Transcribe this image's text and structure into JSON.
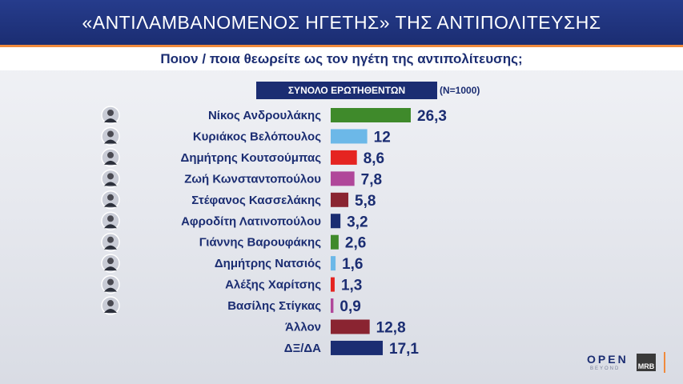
{
  "header": {
    "title": "«ΑΝΤΙΛΑΜΒΑΝΟΜΕΝΟΣ ΗΓΕΤΗΣ» ΤΗΣ ΑΝΤΙΠΟΛΙΤΕΥΣΗΣ",
    "subtitle": "Ποιον / ποια θεωρείτε ως τον ηγέτη της αντιπολίτευσης;"
  },
  "sample": {
    "label": "ΣΥΝΟΛΟ ΕΡΩΤΗΘΕΝΤΩΝ",
    "n": "(N=1000)"
  },
  "chart_data": {
    "type": "bar",
    "orientation": "horizontal",
    "categories": [
      "Νίκος Ανδρουλάκης",
      "Κυριάκος Βελόπουλος",
      "Δημήτρης Κουτσούμπας",
      "Ζωή Κωνσταντοπούλου",
      "Στέφανος Κασσελάκης",
      "Αφροδίτη Λατινοπούλου",
      "Γιάννης Βαρουφάκης",
      "Δημήτρης Νατσιός",
      "Αλέξης Χαρίτσης",
      "Βασίλης Στίγκας",
      "Άλλον",
      "ΔΞ/ΔΑ"
    ],
    "values": [
      26.3,
      12,
      8.6,
      7.8,
      5.8,
      3.2,
      2.6,
      1.6,
      1.3,
      0.9,
      12.8,
      17.1
    ],
    "value_labels": [
      "26,3",
      "12",
      "8,6",
      "7,8",
      "5,8",
      "3,2",
      "2,6",
      "1,6",
      "1,3",
      "0,9",
      "12,8",
      "17,1"
    ],
    "colors": [
      "#3f8a2b",
      "#6cb8e8",
      "#e52421",
      "#b0479a",
      "#8a2431",
      "#1b2d72",
      "#3f8a2b",
      "#6cb8e8",
      "#e52421",
      "#b0479a",
      "#8a2431",
      "#1b2d72"
    ],
    "avatars": [
      true,
      true,
      true,
      true,
      true,
      true,
      true,
      true,
      true,
      true,
      false,
      false
    ],
    "xlim": [
      0,
      30
    ],
    "grid": false,
    "legend": "none"
  },
  "footer": {
    "logo_open": "OPEN",
    "logo_beyond": "BEYOND",
    "logo_mrb": "MRB"
  }
}
